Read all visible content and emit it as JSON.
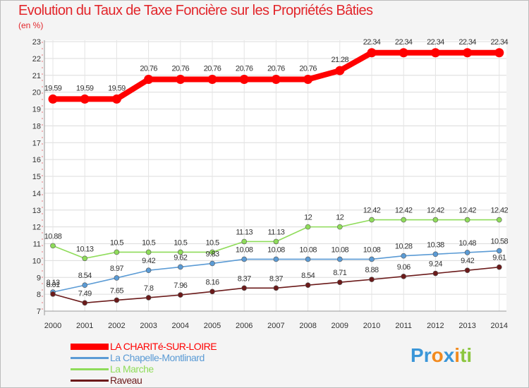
{
  "title": "Evolution du Taux de Taxe Foncière sur les Propriétés Bâties",
  "subtitle": "(en %)",
  "logo": {
    "letters": [
      "P",
      "r",
      "o",
      "x",
      "i",
      "t",
      "i"
    ],
    "colors": [
      "#3a96d8",
      "#3a96d8",
      "#f28a1e",
      "#3a96d8",
      "#f28a1e",
      "#8cc63f",
      "#8cc63f"
    ]
  },
  "chart_data": {
    "type": "line",
    "x": [
      "2000",
      "2001",
      "2002",
      "2003",
      "2004",
      "2005",
      "2006",
      "2007",
      "2008",
      "2009",
      "2010",
      "2011",
      "2012",
      "2013",
      "2014"
    ],
    "y_ticks": [
      "7",
      "8",
      "9",
      "10",
      "11",
      "12",
      "13",
      "14",
      "15",
      "16",
      "17",
      "18",
      "19",
      "20",
      "21",
      "22",
      "23"
    ],
    "ylim": [
      7,
      23
    ],
    "grid": true,
    "legend_position": "bottom-left",
    "series": [
      {
        "name": "LA CHARITé-SUR-LOIRE",
        "color": "#ff0000",
        "values": [
          19.59,
          19.59,
          19.59,
          20.76,
          20.76,
          20.76,
          20.76,
          20.76,
          20.76,
          21.28,
          22.34,
          22.34,
          22.34,
          22.34,
          22.34
        ],
        "labels": [
          "19.59",
          "19.59",
          "19.59",
          "20.76",
          "20.76",
          "20.76",
          "20.76",
          "20.76",
          "20.76",
          "21.28",
          "22.34",
          "22.34",
          "22.34",
          "22.34",
          "22.34"
        ]
      },
      {
        "name": "La Chapelle-Montlinard",
        "color": "#5b9bd5",
        "values": [
          8.13,
          8.54,
          8.97,
          9.42,
          9.62,
          9.83,
          10.08,
          10.08,
          10.08,
          10.08,
          10.08,
          10.28,
          10.38,
          10.48,
          10.58
        ],
        "labels": [
          "8.13",
          "8.54",
          "8.97",
          "9.42",
          "9.62",
          "9.83",
          "10.08",
          "10.08",
          "10.08",
          "10.08",
          "10.08",
          "10.28",
          "10.38",
          "10.48",
          "10.58"
        ]
      },
      {
        "name": "La Marche",
        "color": "#8fdc5a",
        "values": [
          10.88,
          10.13,
          10.5,
          10.5,
          10.5,
          10.5,
          11.13,
          11.13,
          12,
          12,
          12.42,
          12.42,
          12.42,
          12.42,
          12.42
        ],
        "labels": [
          "10.88",
          "10.13",
          "10.5",
          "10.5",
          "10.5",
          "10.5",
          "11.13",
          "11.13",
          "12",
          "12",
          "12.42",
          "12.42",
          "12.42",
          "12.42",
          "12.42"
        ]
      },
      {
        "name": "Raveau",
        "color": "#6b1a1a",
        "values": [
          8.01,
          7.49,
          7.65,
          7.8,
          7.96,
          8.16,
          8.37,
          8.37,
          8.54,
          8.71,
          8.88,
          9.06,
          9.24,
          9.42,
          9.61
        ],
        "labels": [
          "8.01",
          "7.49",
          "7.65",
          "7.8",
          "7.96",
          "8.16",
          "8.37",
          "8.37",
          "8.54",
          "8.71",
          "8.88",
          "9.06",
          "9.24",
          "9.42",
          "9.61"
        ]
      }
    ]
  }
}
